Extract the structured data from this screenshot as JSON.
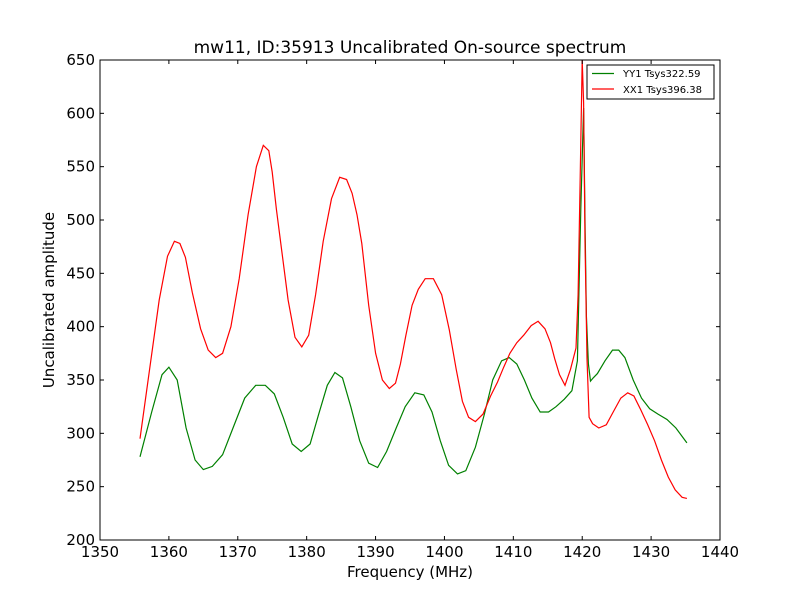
{
  "chart_data": {
    "type": "line",
    "title": "mw11, ID:35913 Uncalibrated On-source spectrum",
    "xlabel": "Frequency (MHz)",
    "ylabel": "Uncalibrated amplitude",
    "xlim": [
      1350,
      1440
    ],
    "ylim": [
      200,
      650
    ],
    "xticks": [
      "1350",
      "1360",
      "1370",
      "1380",
      "1390",
      "1400",
      "1410",
      "1420",
      "1430",
      "1440"
    ],
    "yticks": [
      "200",
      "250",
      "300",
      "350",
      "400",
      "450",
      "500",
      "550",
      "600",
      "650"
    ],
    "grid": false,
    "legend_position": "top-right",
    "series": [
      {
        "name": "YY1 Tsys322.59",
        "color": "#008000",
        "x": [
          1355.8,
          1357.5,
          1359.0,
          1360.0,
          1361.2,
          1362.5,
          1363.8,
          1365.0,
          1366.3,
          1367.8,
          1369.3,
          1371.0,
          1372.6,
          1374.0,
          1375.3,
          1376.6,
          1377.9,
          1379.2,
          1380.5,
          1381.7,
          1383.0,
          1384.1,
          1385.2,
          1386.4,
          1387.7,
          1389.0,
          1390.3,
          1391.6,
          1393.0,
          1394.3,
          1395.7,
          1397.0,
          1398.2,
          1399.4,
          1400.6,
          1401.9,
          1403.1,
          1404.5,
          1405.8,
          1407.0,
          1408.3,
          1409.4,
          1410.5,
          1411.6,
          1412.7,
          1413.9,
          1415.1,
          1416.2,
          1417.4,
          1418.5,
          1419.3,
          1419.8,
          1420.2,
          1420.4,
          1420.6,
          1420.9,
          1421.2,
          1421.6,
          1422.2,
          1423.3,
          1424.4,
          1425.3,
          1426.2,
          1427.4,
          1428.6,
          1429.8,
          1431.0,
          1432.3,
          1433.6,
          1435.2
        ],
        "values": [
          278,
          320,
          355,
          362,
          350,
          305,
          275,
          266,
          269,
          280,
          305,
          333,
          345,
          345,
          337,
          315,
          290,
          283,
          290,
          317,
          345,
          357,
          352,
          325,
          293,
          272,
          268,
          283,
          305,
          325,
          338,
          336,
          320,
          293,
          270,
          262,
          265,
          287,
          318,
          350,
          368,
          371,
          365,
          350,
          333,
          320,
          320,
          325,
          332,
          340,
          368,
          510,
          605,
          500,
          410,
          365,
          349,
          352,
          356,
          368,
          378,
          378,
          371,
          350,
          333,
          323,
          318,
          313,
          305,
          291
        ]
      },
      {
        "name": "XX1 Tsys396.38",
        "color": "#ff0000",
        "x": [
          1355.8,
          1357.2,
          1358.6,
          1359.8,
          1360.8,
          1361.6,
          1362.4,
          1363.4,
          1364.6,
          1365.7,
          1366.8,
          1367.8,
          1369.0,
          1370.2,
          1371.5,
          1372.7,
          1373.7,
          1374.5,
          1375.0,
          1375.6,
          1376.4,
          1377.3,
          1378.3,
          1379.3,
          1380.3,
          1381.3,
          1382.4,
          1383.6,
          1384.8,
          1385.8,
          1386.6,
          1387.3,
          1388.0,
          1389.0,
          1390.0,
          1391.0,
          1392.0,
          1392.9,
          1393.6,
          1394.4,
          1395.3,
          1396.2,
          1397.2,
          1398.4,
          1399.6,
          1400.7,
          1401.7,
          1402.6,
          1403.5,
          1404.5,
          1405.6,
          1406.7,
          1407.7,
          1408.6,
          1409.5,
          1410.5,
          1411.5,
          1412.6,
          1413.6,
          1414.6,
          1415.4,
          1416.0,
          1416.7,
          1417.5,
          1418.3,
          1419.1,
          1419.4,
          1419.7,
          1420.0,
          1420.2,
          1420.4,
          1420.7,
          1421.0,
          1421.5,
          1422.4,
          1423.5,
          1424.5,
          1425.6,
          1426.6,
          1427.5,
          1428.5,
          1429.5,
          1430.5,
          1431.5,
          1432.5,
          1433.5,
          1434.5,
          1435.2
        ],
        "values": [
          295,
          360,
          425,
          466,
          480,
          478,
          465,
          432,
          398,
          378,
          371,
          375,
          400,
          445,
          505,
          550,
          570,
          565,
          545,
          510,
          470,
          425,
          390,
          381,
          392,
          430,
          480,
          520,
          540,
          538,
          525,
          505,
          478,
          420,
          375,
          350,
          342,
          347,
          365,
          392,
          420,
          435,
          445,
          445,
          430,
          397,
          360,
          330,
          315,
          311,
          318,
          335,
          348,
          362,
          375,
          385,
          392,
          401,
          405,
          398,
          385,
          370,
          355,
          345,
          360,
          380,
          430,
          540,
          650,
          610,
          480,
          370,
          315,
          309,
          305,
          308,
          320,
          333,
          338,
          335,
          322,
          308,
          293,
          275,
          259,
          247,
          240,
          239
        ]
      }
    ]
  }
}
